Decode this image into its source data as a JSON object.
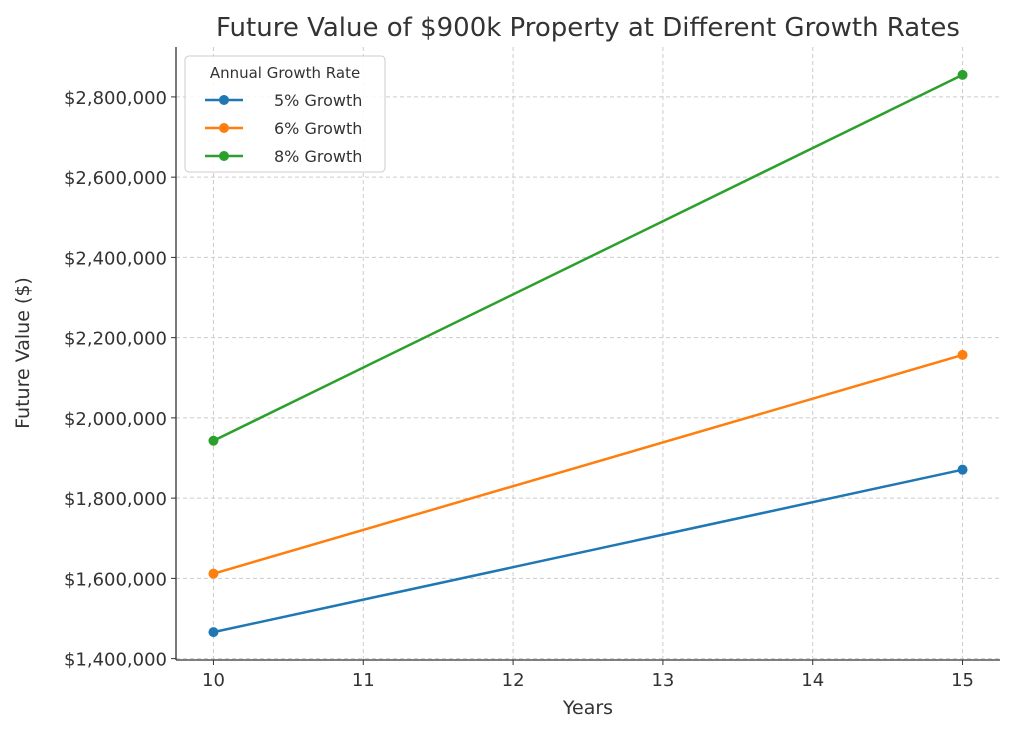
{
  "chart_data": {
    "type": "line",
    "title": "Future Value of $900k Property at Different Growth Rates",
    "xlabel": "Years",
    "ylabel": "Future Value ($)",
    "x": [
      10,
      15
    ],
    "xlim": [
      9.75,
      15.25
    ],
    "ylim": [
      1396558,
      2924399
    ],
    "xticks": [
      10,
      11,
      12,
      13,
      14,
      15
    ],
    "xtick_labels": [
      "10",
      "11",
      "12",
      "13",
      "14",
      "15"
    ],
    "yticks": [
      1400000,
      1600000,
      1800000,
      2000000,
      2200000,
      2400000,
      2600000,
      2800000
    ],
    "ytick_labels": [
      "$1,400,000",
      "$1,600,000",
      "$1,800,000",
      "$2,000,000",
      "$2,200,000",
      "$2,400,000",
      "$2,600,000",
      "$2,800,000"
    ],
    "grid": true,
    "legend": {
      "title": "Annual Growth Rate",
      "placement": "top-left"
    },
    "series": [
      {
        "name": "5% Growth",
        "color": "#1f77b4",
        "values": [
          1466005,
          1870928
        ]
      },
      {
        "name": "6% Growth",
        "color": "#ff7f0e",
        "values": [
          1611763,
          2156902
        ]
      },
      {
        "name": "8% Growth",
        "color": "#2ca02c",
        "values": [
          1943032,
          2854952
        ]
      }
    ]
  }
}
